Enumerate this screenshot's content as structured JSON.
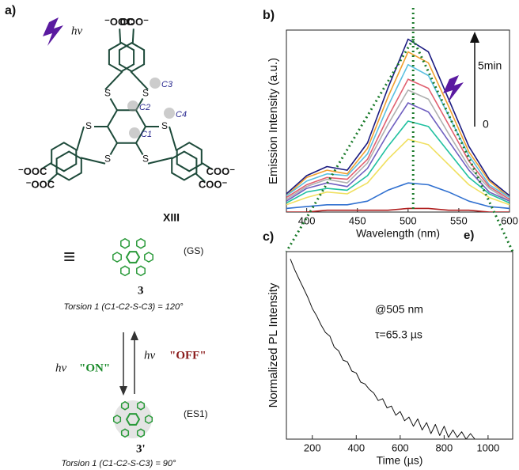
{
  "diagram": {
    "panel_label": "a)",
    "excitation": "hν",
    "carboxylates": [
      "COO⁻",
      "⁻OOC",
      "COO⁻",
      "⁻OOC",
      "COO⁻",
      "⁻OOC"
    ],
    "sulfurs": [
      "S",
      "S",
      "S",
      "S",
      "S",
      "S"
    ],
    "carbon_labels": [
      "C1",
      "C2",
      "C3",
      "C4"
    ],
    "compound": "XIII",
    "equivalent": "≡",
    "ground_state": "(GS)",
    "ground_label": "3",
    "torsion_ground": "Torsion 1 (C1-C2-S-C3) = 120°",
    "on_light": "hν",
    "on_text": "\"ON\"",
    "off_light": "hν",
    "off_text": "\"OFF\"",
    "excited_state": "(ES1)",
    "excited_label": "3'",
    "torsion_excited": "Torsion 1 (C1-C2-S-C3) = 90°"
  },
  "chart_data": [
    {
      "type": "line",
      "panel_label": "b)",
      "x_label": "Wavelength (nm)",
      "y_label": "Emission Intensity (a.u.)",
      "x": [
        380,
        400,
        420,
        440,
        460,
        480,
        500,
        520,
        540,
        560,
        580,
        600
      ],
      "series": [
        {
          "color": "#1a1a80",
          "values": [
            0.1,
            0.2,
            0.25,
            0.23,
            0.38,
            0.68,
            0.95,
            0.88,
            0.62,
            0.36,
            0.18,
            0.09
          ]
        },
        {
          "color": "#f0a030",
          "values": [
            0.09,
            0.19,
            0.23,
            0.21,
            0.35,
            0.63,
            0.88,
            0.82,
            0.58,
            0.33,
            0.17,
            0.08
          ]
        },
        {
          "color": "#5bc0e0",
          "values": [
            0.09,
            0.17,
            0.21,
            0.2,
            0.32,
            0.58,
            0.81,
            0.75,
            0.53,
            0.31,
            0.15,
            0.08
          ]
        },
        {
          "color": "#e06070",
          "values": [
            0.08,
            0.15,
            0.19,
            0.18,
            0.29,
            0.52,
            0.73,
            0.68,
            0.48,
            0.28,
            0.14,
            0.07
          ]
        },
        {
          "color": "#b0b0b0",
          "values": [
            0.07,
            0.14,
            0.18,
            0.16,
            0.27,
            0.48,
            0.67,
            0.62,
            0.43,
            0.25,
            0.13,
            0.06
          ]
        },
        {
          "color": "#7060c0",
          "values": [
            0.06,
            0.13,
            0.16,
            0.14,
            0.24,
            0.43,
            0.6,
            0.55,
            0.39,
            0.23,
            0.11,
            0.06
          ]
        },
        {
          "color": "#20c0a0",
          "values": [
            0.05,
            0.11,
            0.13,
            0.12,
            0.2,
            0.36,
            0.5,
            0.47,
            0.33,
            0.19,
            0.1,
            0.05
          ]
        },
        {
          "color": "#f0e060",
          "values": [
            0.04,
            0.08,
            0.11,
            0.1,
            0.16,
            0.29,
            0.4,
            0.37,
            0.26,
            0.15,
            0.08,
            0.04
          ]
        },
        {
          "color": "#3070d0",
          "values": [
            0.02,
            0.03,
            0.04,
            0.04,
            0.06,
            0.12,
            0.16,
            0.15,
            0.11,
            0.06,
            0.03,
            0.02
          ]
        },
        {
          "color": "#b02020",
          "values": [
            0.0,
            0.0,
            0.01,
            0.01,
            0.01,
            0.01,
            0.02,
            0.02,
            0.01,
            0.01,
            0.0,
            0.0
          ]
        }
      ],
      "xlim": [
        380,
        600
      ],
      "xticks": [
        400,
        450,
        500,
        550,
        600
      ],
      "ylim": [
        0,
        1
      ],
      "reference_x": 505,
      "reference_color": "#1a7a2a",
      "arrow_start": "0",
      "arrow_end": "5min",
      "corner_label": "e)"
    },
    {
      "type": "line",
      "panel_label": "c)",
      "x_label": "Time (µs)",
      "y_label": "Normalized PL Intensity",
      "x": [
        100,
        120,
        140,
        160,
        180,
        200,
        220,
        240,
        260,
        280,
        300,
        320,
        340,
        360,
        380,
        400,
        420,
        440,
        460,
        480,
        500,
        520,
        540,
        560,
        580,
        600,
        620,
        640,
        660,
        680,
        700,
        720,
        740,
        760,
        780,
        800,
        820,
        840,
        860,
        880,
        900,
        920,
        940,
        960,
        980,
        1000
      ],
      "series": [
        {
          "color": "#111111",
          "values": [
            0.98,
            0.92,
            0.87,
            0.82,
            0.77,
            0.71,
            0.67,
            0.62,
            0.58,
            0.56,
            0.5,
            0.48,
            0.43,
            0.42,
            0.37,
            0.36,
            0.31,
            0.3,
            0.27,
            0.25,
            0.21,
            0.22,
            0.17,
            0.18,
            0.13,
            0.15,
            0.1,
            0.12,
            0.07,
            0.11,
            0.05,
            0.09,
            0.03,
            0.08,
            0.02,
            0.07,
            0.01,
            0.05,
            0.01,
            0.04,
            0.0,
            0.03,
            0.0,
            null,
            0.03,
            null
          ]
        }
      ],
      "xlim": [
        82,
        1112
      ],
      "xticks": [
        200,
        400,
        600,
        800,
        1000
      ],
      "ylim": [
        0,
        1.02
      ],
      "annotations": [
        "@505 nm",
        "τ=65.3 µs"
      ]
    }
  ]
}
